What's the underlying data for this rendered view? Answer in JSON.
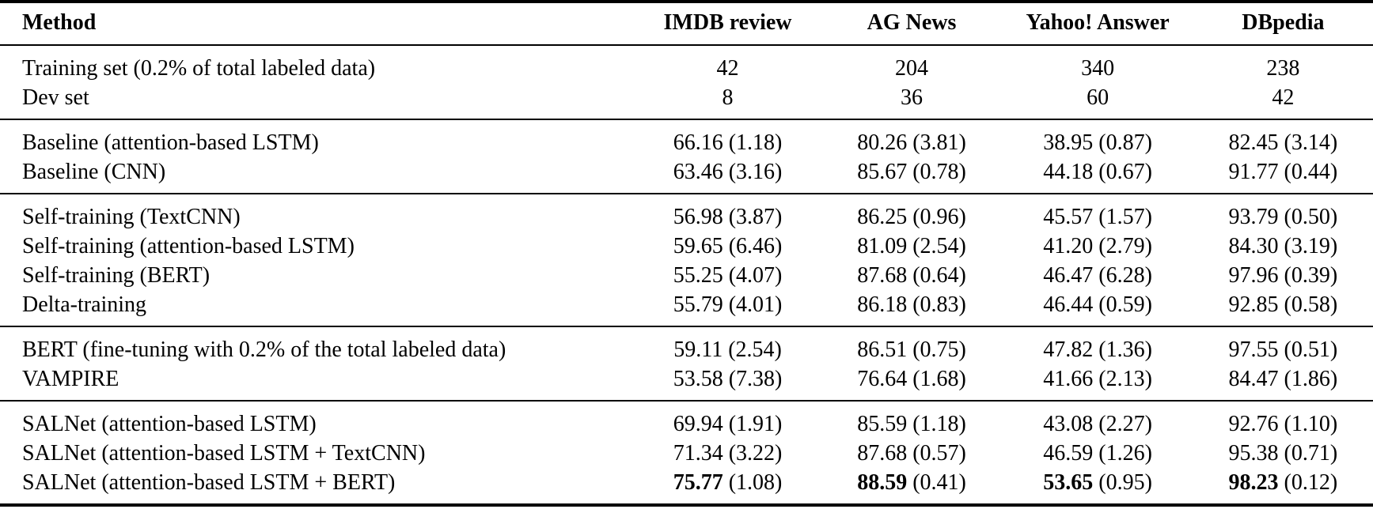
{
  "table": {
    "columns": [
      "Method",
      "IMDB review",
      "AG News",
      "Yahoo! Answer",
      "DBpedia"
    ],
    "sections": [
      {
        "name": "dataset-stats",
        "rows": [
          {
            "method": "Training set (0.2% of total labeled data)",
            "values": [
              "42",
              "204",
              "340",
              "238"
            ],
            "bold_main": false
          },
          {
            "method": "Dev set",
            "values": [
              "8",
              "36",
              "60",
              "42"
            ],
            "bold_main": false
          }
        ]
      },
      {
        "name": "baselines",
        "rows": [
          {
            "method": "Baseline (attention-based LSTM)",
            "values": [
              "66.16 (1.18)",
              "80.26 (3.81)",
              "38.95 (0.87)",
              "82.45 (3.14)"
            ],
            "bold_main": false
          },
          {
            "method": "Baseline (CNN)",
            "values": [
              "63.46 (3.16)",
              "85.67 (0.78)",
              "44.18 (0.67)",
              "91.77 (0.44)"
            ],
            "bold_main": false
          }
        ]
      },
      {
        "name": "self-training-methods",
        "rows": [
          {
            "method": "Self-training (TextCNN)",
            "values": [
              "56.98 (3.87)",
              "86.25 (0.96)",
              "45.57 (1.57)",
              "93.79 (0.50)"
            ],
            "bold_main": false
          },
          {
            "method": "Self-training (attention-based LSTM)",
            "values": [
              "59.65 (6.46)",
              "81.09 (2.54)",
              "41.20 (2.79)",
              "84.30 (3.19)"
            ],
            "bold_main": false
          },
          {
            "method": "Self-training (BERT)",
            "values": [
              "55.25 (4.07)",
              "87.68 (0.64)",
              "46.47 (6.28)",
              "97.96 (0.39)"
            ],
            "bold_main": false
          },
          {
            "method": "Delta-training",
            "values": [
              "55.79 (4.01)",
              "86.18 (0.83)",
              "46.44 (0.59)",
              "92.85 (0.58)"
            ],
            "bold_main": false
          }
        ]
      },
      {
        "name": "pretrained-baselines",
        "rows": [
          {
            "method": "BERT (fine-tuning with 0.2% of the total labeled data)",
            "values": [
              "59.11 (2.54)",
              "86.51 (0.75)",
              "47.82 (1.36)",
              "97.55 (0.51)"
            ],
            "bold_main": false
          },
          {
            "method": "VAMPIRE",
            "values": [
              "53.58 (7.38)",
              "76.64 (1.68)",
              "41.66 (2.13)",
              "84.47 (1.86)"
            ],
            "bold_main": false
          }
        ]
      },
      {
        "name": "salnet-methods",
        "rows": [
          {
            "method": "SALNet (attention-based LSTM)",
            "values": [
              "69.94 (1.91)",
              "85.59 (1.18)",
              "43.08 (2.27)",
              "92.76 (1.10)"
            ],
            "bold_main": false
          },
          {
            "method": "SALNet (attention-based LSTM + TextCNN)",
            "values": [
              "71.34 (3.22)",
              "87.68 (0.57)",
              "46.59 (1.26)",
              "95.38 (0.71)"
            ],
            "bold_main": false
          },
          {
            "method": "SALNet (attention-based LSTM + BERT)",
            "values": [
              "75.77 (1.08)",
              "88.59 (0.41)",
              "53.65 (0.95)",
              "98.23 (0.12)"
            ],
            "bold_main": true
          }
        ]
      }
    ]
  }
}
